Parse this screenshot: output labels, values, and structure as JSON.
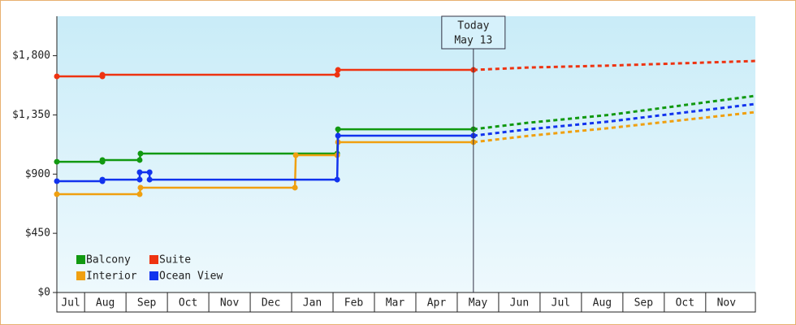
{
  "chart_data": {
    "type": "step-line",
    "xlim": [
      0.33,
      17.2
    ],
    "ylim": [
      0,
      2100
    ],
    "categories": [
      "Jul",
      "Aug",
      "Sep",
      "Oct",
      "Nov",
      "Dec",
      "Jan",
      "Feb",
      "Mar",
      "Apr",
      "May",
      "Jun",
      "Jul",
      "Aug",
      "Sep",
      "Oct",
      "Nov"
    ],
    "yticks": [
      {
        "value": 0,
        "label": "$0"
      },
      {
        "value": 450,
        "label": "$450"
      },
      {
        "value": 900,
        "label": "$900"
      },
      {
        "value": 1350,
        "label": "$1,350"
      },
      {
        "value": 1800,
        "label": "$1,800"
      }
    ],
    "today": {
      "x": 10.39,
      "label": "Today",
      "date": "May 13"
    },
    "legend": "lower left",
    "series": [
      {
        "name": "Balcony",
        "color": "#119911",
        "x": [
          0.33,
          1.43,
          1.43,
          2.33,
          2.35,
          7.1,
          7.12,
          10.39
        ],
        "values": [
          994,
          994,
          1007,
          1007,
          1056,
          1056,
          1241,
          1241
        ],
        "forecast": {
          "x": [
            10.39,
            11.7,
            13.67,
            17.2
          ],
          "values": [
            1241,
            1290,
            1350,
            1495
          ]
        }
      },
      {
        "name": "Suite",
        "color": "#ee3311",
        "x": [
          0.33,
          1.43,
          1.43,
          7.1,
          7.12,
          10.39
        ],
        "values": [
          1643,
          1643,
          1655,
          1655,
          1692,
          1692
        ],
        "forecast": {
          "x": [
            10.39,
            11.7,
            13.67,
            17.2
          ],
          "values": [
            1692,
            1710,
            1725,
            1760
          ]
        }
      },
      {
        "name": "Interior",
        "color": "#f0a010",
        "x": [
          0.33,
          2.33,
          2.35,
          6.08,
          6.1,
          7.1,
          7.12,
          10.39
        ],
        "values": [
          747,
          747,
          797,
          797,
          1044,
          1044,
          1143,
          1143
        ],
        "forecast": {
          "x": [
            10.39,
            11.7,
            13.67,
            17.2
          ],
          "values": [
            1143,
            1190,
            1250,
            1371
          ]
        }
      },
      {
        "name": "Ocean View",
        "color": "#1133ee",
        "x": [
          0.33,
          1.43,
          1.43,
          2.33,
          2.33,
          2.57,
          2.57,
          7.1,
          7.12,
          10.39
        ],
        "values": [
          846,
          846,
          858,
          858,
          914,
          914,
          858,
          858,
          1192,
          1192
        ],
        "forecast": {
          "x": [
            10.39,
            11.7,
            13.67,
            17.2
          ],
          "values": [
            1192,
            1240,
            1300,
            1433
          ]
        }
      }
    ]
  }
}
